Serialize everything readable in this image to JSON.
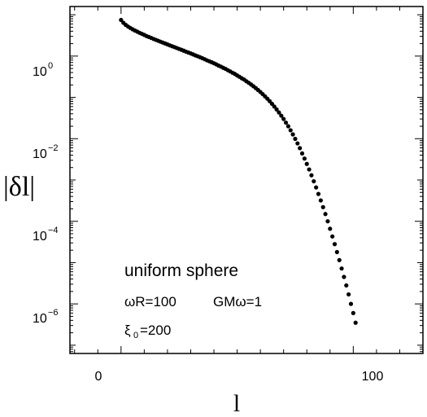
{
  "chart_data": {
    "type": "scatter",
    "title": "",
    "xlabel": "l",
    "ylabel": "|δl|",
    "xscale": "linear",
    "yscale": "log",
    "xlim": [
      -22,
      130
    ],
    "ylim_log10": [
      -7.2,
      1.2
    ],
    "grid": false,
    "x_ticks": [
      0,
      100
    ],
    "x_tick_labels": [
      "0",
      "100"
    ],
    "y_ticks_log10": [
      0,
      -2,
      -4,
      -6
    ],
    "y_tick_labels": [
      {
        "base": "10",
        "exp": "0"
      },
      {
        "base": "10",
        "exp": "−2"
      },
      {
        "base": "10",
        "exp": "−4"
      },
      {
        "base": "10",
        "exp": "−6"
      }
    ],
    "annotations": {
      "line1": "uniform sphere",
      "line2a": "ωR=100",
      "line2b": "GMω=1",
      "line3_base": "ξ",
      "line3_sub": "0",
      "line3_rest": "=200"
    },
    "marker_color": "#000000",
    "series": [
      {
        "points": [
          [
            0,
            7.5
          ],
          [
            1,
            6.4
          ],
          [
            2,
            5.7
          ],
          [
            3,
            5.2
          ],
          [
            4,
            4.8
          ],
          [
            5,
            4.45
          ],
          [
            6,
            4.15
          ],
          [
            7,
            3.9
          ],
          [
            8,
            3.65
          ],
          [
            9,
            3.45
          ],
          [
            10,
            3.25
          ],
          [
            11,
            3.05
          ],
          [
            12,
            2.9
          ],
          [
            13,
            2.75
          ],
          [
            14,
            2.6
          ],
          [
            15,
            2.47
          ],
          [
            16,
            2.35
          ],
          [
            17,
            2.23
          ],
          [
            18,
            2.12
          ],
          [
            19,
            2.02
          ],
          [
            20,
            1.92
          ],
          [
            21,
            1.82
          ],
          [
            22,
            1.73
          ],
          [
            23,
            1.65
          ],
          [
            24,
            1.57
          ],
          [
            25,
            1.49
          ],
          [
            26,
            1.42
          ],
          [
            27,
            1.35
          ],
          [
            28,
            1.28
          ],
          [
            29,
            1.22
          ],
          [
            30,
            1.16
          ],
          [
            31,
            1.1
          ],
          [
            32,
            1.04
          ],
          [
            33,
            0.99
          ],
          [
            34,
            0.94
          ],
          [
            35,
            0.89
          ],
          [
            36,
            0.84
          ],
          [
            37,
            0.79
          ],
          [
            38,
            0.75
          ],
          [
            39,
            0.71
          ],
          [
            40,
            0.67
          ],
          [
            41,
            0.63
          ],
          [
            42,
            0.59
          ],
          [
            43,
            0.555
          ],
          [
            44,
            0.52
          ],
          [
            45,
            0.49
          ],
          [
            46,
            0.455
          ],
          [
            47,
            0.425
          ],
          [
            48,
            0.395
          ],
          [
            49,
            0.37
          ],
          [
            50,
            0.34
          ],
          [
            51,
            0.315
          ],
          [
            52,
            0.29
          ],
          [
            53,
            0.27
          ],
          [
            54,
            0.245
          ],
          [
            55,
            0.225
          ],
          [
            56,
            0.205
          ],
          [
            57,
            0.186
          ],
          [
            58,
            0.168
          ],
          [
            59,
            0.151
          ],
          [
            60,
            0.135
          ],
          [
            61,
            0.12
          ],
          [
            62,
            0.106
          ],
          [
            63,
            0.093
          ],
          [
            64,
            0.081
          ],
          [
            65,
            0.07
          ],
          [
            66,
            0.06
          ],
          [
            67,
            0.051
          ],
          [
            68,
            0.043
          ],
          [
            69,
            0.036
          ],
          [
            70,
            0.03
          ],
          [
            71,
            0.0245
          ],
          [
            72,
            0.02
          ],
          [
            73,
            0.016
          ],
          [
            74,
            0.0127
          ],
          [
            75,
            0.0099
          ],
          [
            76,
            0.0077
          ],
          [
            77,
            0.0059
          ],
          [
            78,
            0.0044
          ],
          [
            79,
            0.0033
          ],
          [
            80,
            0.00245
          ],
          [
            81,
            0.0018
          ],
          [
            82,
            0.0013
          ],
          [
            83,
            0.00093
          ],
          [
            84,
            0.00066
          ],
          [
            85,
            0.00046
          ],
          [
            86,
            0.00032
          ],
          [
            87,
            0.00022
          ],
          [
            88,
            0.00015
          ],
          [
            89,
            0.0001
          ],
          [
            90,
            6.6e-05
          ],
          [
            91,
            4.3e-05
          ],
          [
            92,
            2.8e-05
          ],
          [
            93,
            1.8e-05
          ],
          [
            94,
            1.15e-05
          ],
          [
            95,
            7.2e-06
          ],
          [
            96,
            4.5e-06
          ],
          [
            97,
            2.8e-06
          ],
          [
            98,
            1.7e-06
          ],
          [
            99,
            1e-06
          ],
          [
            100,
            6e-07
          ],
          [
            101,
            3.5e-07
          ]
        ]
      }
    ]
  }
}
